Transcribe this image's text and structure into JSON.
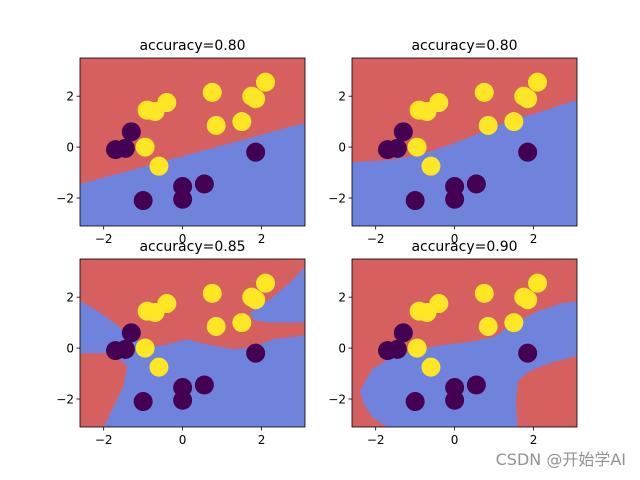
{
  "watermark": "CSDN @开始学AI",
  "colors": {
    "region_red": "#d65f5f",
    "region_blue": "#7083dc",
    "class0": "#440154",
    "class1": "#fde725"
  },
  "chart_data": [
    {
      "type": "scatter",
      "title": "accuracy=0.80",
      "xlim": [
        -2.6,
        3.1
      ],
      "ylim": [
        -3.1,
        3.5
      ],
      "xticks": [
        -2,
        0,
        2
      ],
      "yticks": [
        -2,
        0,
        2
      ],
      "xtick_labels": [
        "−2",
        "0",
        "2"
      ],
      "ytick_labels": [
        "−2",
        "0",
        "2"
      ],
      "boundary": [
        [
          -2.6,
          -1.45
        ],
        [
          3.1,
          0.95
        ]
      ],
      "boundary_closed": false
    },
    {
      "type": "scatter",
      "title": "accuracy=0.80",
      "xlim": [
        -2.6,
        3.1
      ],
      "ylim": [
        -3.1,
        3.5
      ],
      "xticks": [
        -2,
        0,
        2
      ],
      "yticks": [
        -2,
        0,
        2
      ],
      "xtick_labels": [
        "−2",
        "0",
        "2"
      ],
      "ytick_labels": [
        "−2",
        "0",
        "2"
      ],
      "boundary": [
        [
          -2.6,
          -0.6
        ],
        [
          -1.6,
          -0.5
        ],
        [
          -0.8,
          -0.25
        ],
        [
          -0.2,
          0.05
        ],
        [
          0.4,
          0.4
        ],
        [
          1.0,
          0.8
        ],
        [
          1.5,
          1.1
        ],
        [
          2.0,
          1.3
        ],
        [
          2.7,
          1.65
        ],
        [
          3.1,
          1.85
        ]
      ],
      "boundary_closed": false
    },
    {
      "type": "scatter",
      "title": "accuracy=0.85",
      "xlim": [
        -2.6,
        3.1
      ],
      "ylim": [
        -3.1,
        3.5
      ],
      "xticks": [
        -2,
        0,
        2
      ],
      "yticks": [
        -2,
        0,
        2
      ],
      "xtick_labels": [
        "−2",
        "0",
        "2"
      ],
      "ytick_labels": [
        "−2",
        "0",
        "2"
      ],
      "blue_regions": [
        [
          [
            -2.6,
            1.85
          ],
          [
            -2.2,
            1.5
          ],
          [
            -1.7,
            0.95
          ],
          [
            -1.3,
            0.45
          ],
          [
            -0.9,
            0.05
          ],
          [
            -0.5,
            0.1
          ],
          [
            0.1,
            0.35
          ],
          [
            0.6,
            0.15
          ],
          [
            1.3,
            -0.05
          ],
          [
            1.8,
            0.05
          ],
          [
            2.3,
            0.35
          ],
          [
            3.1,
            0.5
          ],
          [
            3.1,
            -3.1
          ],
          [
            -2.0,
            -3.1
          ],
          [
            -1.5,
            -1.5
          ],
          [
            -1.4,
            -0.7
          ],
          [
            -1.8,
            -0.2
          ],
          [
            -2.6,
            -0.2
          ]
        ],
        [
          [
            1.7,
            1.4
          ],
          [
            2.2,
            1.9
          ],
          [
            2.7,
            2.55
          ],
          [
            3.1,
            3.2
          ],
          [
            3.1,
            1.0
          ],
          [
            2.2,
            1.0
          ],
          [
            1.8,
            1.1
          ]
        ]
      ]
    },
    {
      "type": "scatter",
      "title": "accuracy=0.90",
      "xlim": [
        -2.6,
        3.1
      ],
      "ylim": [
        -3.1,
        3.5
      ],
      "xticks": [
        -2,
        0,
        2
      ],
      "yticks": [
        -2,
        0,
        2
      ],
      "xtick_labels": [
        "−2",
        "0",
        "2"
      ],
      "ytick_labels": [
        "−2",
        "0",
        "2"
      ],
      "blue_regions": [
        [
          [
            -2.4,
            -1.7
          ],
          [
            -2.1,
            -0.85
          ],
          [
            -1.6,
            -0.35
          ],
          [
            -1.0,
            -0.1
          ],
          [
            -0.4,
            0.1
          ],
          [
            0.4,
            0.25
          ],
          [
            1.0,
            0.45
          ],
          [
            1.5,
            0.95
          ],
          [
            2.1,
            1.45
          ],
          [
            2.7,
            1.75
          ],
          [
            3.1,
            1.85
          ],
          [
            3.1,
            -0.3
          ],
          [
            2.4,
            -0.6
          ],
          [
            1.9,
            -0.9
          ],
          [
            1.6,
            -1.3
          ],
          [
            1.55,
            -2.1
          ],
          [
            1.6,
            -3.1
          ],
          [
            -1.7,
            -3.1
          ],
          [
            -2.1,
            -2.7
          ],
          [
            -2.3,
            -2.2
          ]
        ]
      ]
    }
  ],
  "points": {
    "class0": [
      [
        -1.7,
        -0.1
      ],
      [
        -1.45,
        -0.05
      ],
      [
        -1.3,
        0.6
      ],
      [
        -1.0,
        -2.1
      ],
      [
        0.0,
        -1.55
      ],
      [
        0.0,
        -2.05
      ],
      [
        0.55,
        -1.45
      ],
      [
        1.85,
        -0.2
      ]
    ],
    "class1": [
      [
        -0.95,
        0.0
      ],
      [
        -0.6,
        -0.75
      ],
      [
        -0.9,
        1.45
      ],
      [
        -0.7,
        1.4
      ],
      [
        -0.4,
        1.75
      ],
      [
        0.75,
        2.15
      ],
      [
        0.85,
        0.85
      ],
      [
        1.5,
        1.0
      ],
      [
        1.75,
        2.0
      ],
      [
        1.85,
        1.9
      ],
      [
        2.1,
        2.55
      ]
    ]
  }
}
